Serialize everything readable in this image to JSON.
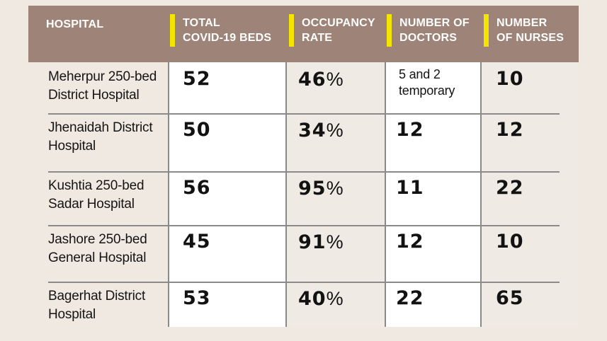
{
  "chart_data": {
    "type": "table",
    "title": "",
    "percent_suffix": "%",
    "columns": [
      {
        "id": "hospital",
        "label": "HOSPITAL",
        "label_lines": [
          "HOSPITAL"
        ]
      },
      {
        "id": "beds",
        "label": "TOTAL COVID-19 BEDS",
        "label_lines": [
          "TOTAL",
          "COVID-19 BEDS"
        ]
      },
      {
        "id": "occupancy",
        "label": "OCCUPANCY RATE",
        "label_lines": [
          "OCCUPANCY",
          "RATE"
        ]
      },
      {
        "id": "doctors",
        "label": "NUMBER OF DOCTORS",
        "label_lines": [
          "NUMBER OF",
          "DOCTORS"
        ]
      },
      {
        "id": "nurses",
        "label": "NUMBER OF NURSES",
        "label_lines": [
          "NUMBER",
          "OF NURSES"
        ]
      }
    ],
    "rows": [
      {
        "hospital": "Meherpur 250-bed District Hospital",
        "beds": 52,
        "occupancy": 46,
        "doctors": "5 and 2 temporary",
        "nurses": 10
      },
      {
        "hospital": "Jhenaidah District Hospital",
        "beds": 50,
        "occupancy": 34,
        "doctors": 12,
        "nurses": 12
      },
      {
        "hospital": "Kushtia 250-bed Sadar Hospital",
        "beds": 56,
        "occupancy": 95,
        "doctors": 11,
        "nurses": 22
      },
      {
        "hospital": "Jashore 250-bed General Hospital",
        "beds": 45,
        "occupancy": 91,
        "doctors": 12,
        "nurses": 10
      },
      {
        "hospital": "Bagerhat District Hospital",
        "beds": 53,
        "occupancy": 40,
        "doctors": 22,
        "nurses": 65
      }
    ]
  },
  "colors": {
    "header_bg": "#9e8478",
    "accent_yellow": "#f4e400",
    "page_bg": "#efe9e2",
    "cell_white": "#ffffff",
    "grid_line": "#8a8a8a",
    "header_text": "#ffffff",
    "body_text": "#161412"
  }
}
